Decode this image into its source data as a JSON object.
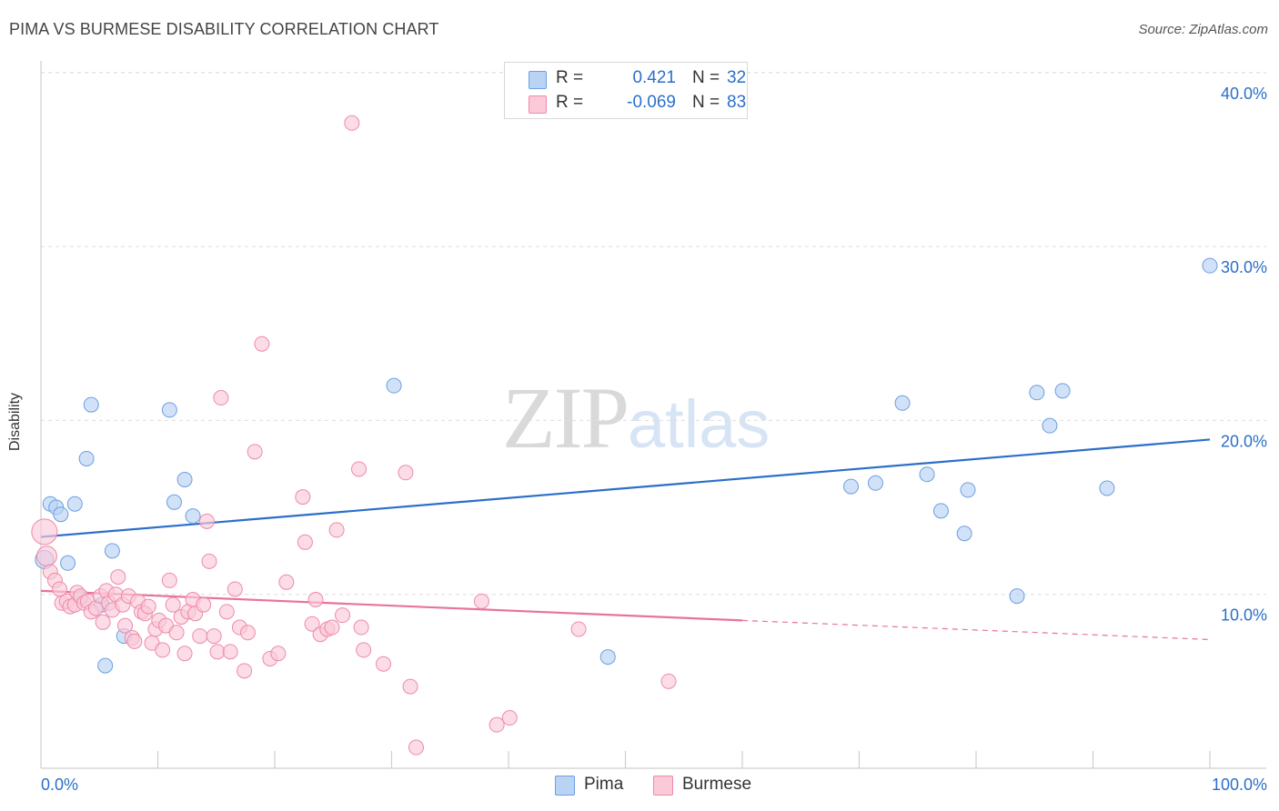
{
  "header": {
    "title": "PIMA VS BURMESE DISABILITY CORRELATION CHART",
    "source": "Source: ZipAtlas.com"
  },
  "watermark": {
    "zip": "ZIP",
    "atlas": "atlas"
  },
  "legend": {
    "rows": [
      {
        "r_label": "R =",
        "r_value": "0.421",
        "n_label": "N =",
        "n_value": "32",
        "swatch_fill": "#b9d3f5",
        "swatch_stroke": "#6d9fe0"
      },
      {
        "r_label": "R =",
        "r_value": "-0.069",
        "n_label": "N =",
        "n_value": "83",
        "swatch_fill": "#fbc9d8",
        "swatch_stroke": "#ee8aa8"
      }
    ]
  },
  "chart_data": {
    "type": "scatter",
    "title": "PIMA VS BURMESE DISABILITY CORRELATION CHART",
    "xlabel": "",
    "ylabel": "Disability",
    "xlim": [
      0,
      100
    ],
    "ylim": [
      0,
      42
    ],
    "x_tick_labels": [
      "0.0%",
      "100.0%"
    ],
    "y_ticks": [
      10,
      20,
      30,
      40
    ],
    "y_tick_labels": [
      "10.0%",
      "20.0%",
      "30.0%",
      "40.0%"
    ],
    "grid": "horizontal dashed",
    "legend_placement": "top-center and bottom",
    "series": [
      {
        "name": "Pima",
        "color": "#6d9fe0",
        "fill": "#b9d3f5",
        "line_color": "#2b6fc9",
        "trend": {
          "x": [
            0,
            100
          ],
          "y": [
            13.3,
            18.9
          ]
        },
        "points": [
          [
            0.3,
            12.0
          ],
          [
            0.8,
            15.2
          ],
          [
            1.3,
            15.0
          ],
          [
            1.7,
            14.6
          ],
          [
            2.3,
            11.8
          ],
          [
            2.9,
            15.2
          ],
          [
            3.4,
            9.8
          ],
          [
            3.9,
            17.8
          ],
          [
            4.3,
            20.9
          ],
          [
            5.2,
            9.4
          ],
          [
            5.5,
            5.9
          ],
          [
            6.1,
            12.5
          ],
          [
            7.1,
            7.6
          ],
          [
            11.0,
            20.6
          ],
          [
            11.4,
            15.3
          ],
          [
            12.3,
            16.6
          ],
          [
            13.0,
            14.5
          ],
          [
            30.2,
            22.0
          ],
          [
            48.5,
            6.4
          ],
          [
            69.3,
            16.2
          ],
          [
            71.4,
            16.4
          ],
          [
            73.7,
            21.0
          ],
          [
            75.8,
            16.9
          ],
          [
            77.0,
            14.8
          ],
          [
            79.3,
            16.0
          ],
          [
            79.0,
            13.5
          ],
          [
            83.5,
            9.9
          ],
          [
            85.2,
            21.6
          ],
          [
            86.3,
            19.7
          ],
          [
            87.4,
            21.7
          ],
          [
            91.2,
            16.1
          ],
          [
            100.0,
            28.9
          ]
        ]
      },
      {
        "name": "Burmese",
        "color": "#ee8aa8",
        "fill": "#fbc9d8",
        "line_color": "#e8739b",
        "trend": {
          "x": [
            0,
            60
          ],
          "y": [
            10.2,
            8.5
          ],
          "dashed_to": [
            100,
            7.4
          ]
        },
        "points": [
          [
            0.3,
            13.6
          ],
          [
            0.5,
            12.2
          ],
          [
            0.8,
            11.3
          ],
          [
            1.2,
            10.8
          ],
          [
            1.6,
            10.3
          ],
          [
            1.8,
            9.5
          ],
          [
            2.2,
            9.6
          ],
          [
            2.5,
            9.3
          ],
          [
            2.9,
            9.4
          ],
          [
            3.1,
            10.1
          ],
          [
            3.4,
            9.9
          ],
          [
            3.7,
            9.5
          ],
          [
            4.0,
            9.6
          ],
          [
            4.3,
            9.0
          ],
          [
            4.7,
            9.2
          ],
          [
            5.1,
            9.9
          ],
          [
            5.3,
            8.4
          ],
          [
            5.6,
            10.2
          ],
          [
            5.8,
            9.5
          ],
          [
            6.1,
            9.1
          ],
          [
            6.4,
            10.0
          ],
          [
            6.6,
            11.0
          ],
          [
            7.0,
            9.4
          ],
          [
            7.2,
            8.2
          ],
          [
            7.5,
            9.9
          ],
          [
            7.8,
            7.5
          ],
          [
            8.0,
            7.3
          ],
          [
            8.3,
            9.6
          ],
          [
            8.6,
            9.0
          ],
          [
            8.9,
            8.9
          ],
          [
            9.2,
            9.3
          ],
          [
            9.5,
            7.2
          ],
          [
            9.8,
            8.0
          ],
          [
            10.1,
            8.5
          ],
          [
            10.4,
            6.8
          ],
          [
            10.7,
            8.2
          ],
          [
            11.0,
            10.8
          ],
          [
            11.3,
            9.4
          ],
          [
            11.6,
            7.8
          ],
          [
            12.0,
            8.7
          ],
          [
            12.3,
            6.6
          ],
          [
            12.6,
            9.0
          ],
          [
            13.0,
            9.7
          ],
          [
            13.2,
            8.9
          ],
          [
            13.6,
            7.6
          ],
          [
            13.9,
            9.4
          ],
          [
            14.2,
            14.2
          ],
          [
            14.4,
            11.9
          ],
          [
            14.8,
            7.6
          ],
          [
            15.1,
            6.7
          ],
          [
            15.4,
            21.3
          ],
          [
            15.9,
            9.0
          ],
          [
            16.2,
            6.7
          ],
          [
            16.6,
            10.3
          ],
          [
            17.0,
            8.1
          ],
          [
            17.4,
            5.6
          ],
          [
            17.7,
            7.8
          ],
          [
            18.3,
            18.2
          ],
          [
            18.9,
            24.4
          ],
          [
            19.6,
            6.3
          ],
          [
            20.3,
            6.6
          ],
          [
            21.0,
            10.7
          ],
          [
            22.4,
            15.6
          ],
          [
            22.6,
            13.0
          ],
          [
            23.2,
            8.3
          ],
          [
            23.5,
            9.7
          ],
          [
            23.9,
            7.7
          ],
          [
            24.5,
            8.0
          ],
          [
            24.9,
            8.1
          ],
          [
            25.3,
            13.7
          ],
          [
            25.8,
            8.8
          ],
          [
            26.6,
            37.1
          ],
          [
            27.2,
            17.2
          ],
          [
            27.4,
            8.1
          ],
          [
            27.6,
            6.8
          ],
          [
            29.3,
            6.0
          ],
          [
            31.2,
            17.0
          ],
          [
            31.6,
            4.7
          ],
          [
            32.1,
            1.2
          ],
          [
            37.7,
            9.6
          ],
          [
            39.0,
            2.5
          ],
          [
            40.1,
            2.9
          ],
          [
            46.0,
            8.0
          ],
          [
            53.7,
            5.0
          ]
        ]
      }
    ]
  }
}
